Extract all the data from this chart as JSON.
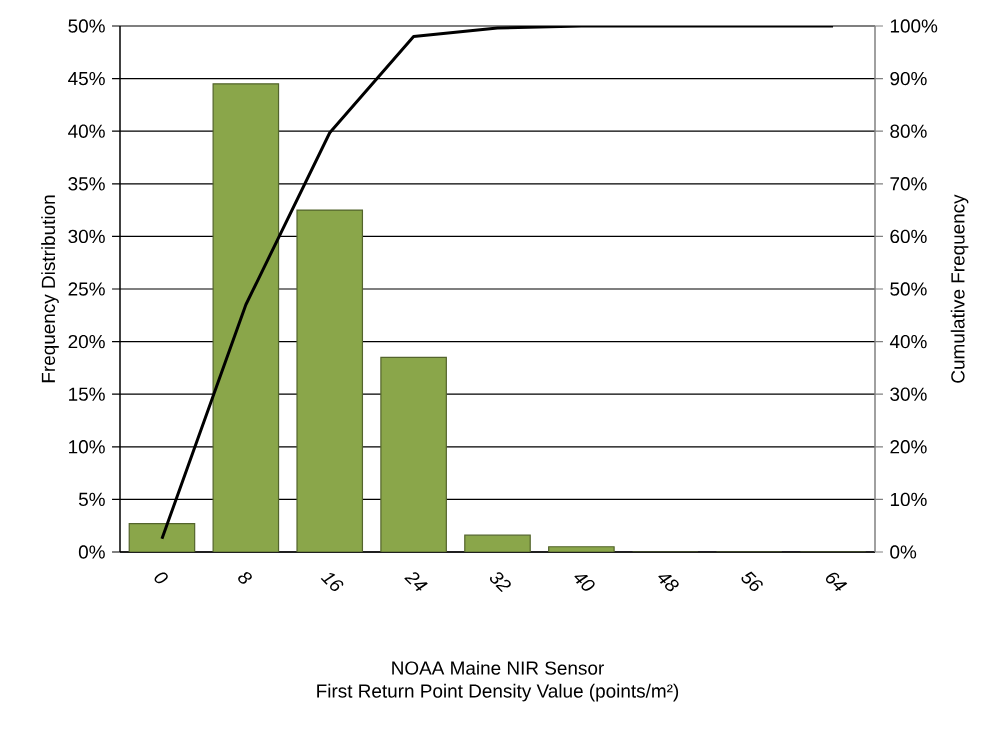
{
  "chart_data": {
    "type": "bar",
    "xlabel": "NOAA Maine NIR Sensor\nFirst Return Point Density Value (points/m²)",
    "ylabel": "Frequency Distribution",
    "y2label": "Cumulative Frequency",
    "categories": [
      "0",
      "8",
      "16",
      "24",
      "32",
      "40",
      "48",
      "56",
      "64"
    ],
    "series": [
      {
        "color": "#8aa64a",
        "values": [
          2.7,
          44.5,
          32.5,
          18.5,
          1.6,
          0.5,
          0,
          0,
          0
        ]
      },
      {
        "type": "line",
        "axis": "y2",
        "color": "#000000",
        "values": [
          2.5,
          47,
          79.7,
          98,
          99.6,
          100,
          100,
          100,
          100
        ]
      }
    ],
    "ylim": [
      0,
      50
    ],
    "yticks": [
      {
        "value": 0,
        "label": "0%"
      },
      {
        "value": 5,
        "label": "5%"
      },
      {
        "value": 10,
        "label": "10%"
      },
      {
        "value": 15,
        "label": "15%"
      },
      {
        "value": 20,
        "label": "20%"
      },
      {
        "value": 25,
        "label": "25%"
      },
      {
        "value": 30,
        "label": "30%"
      },
      {
        "value": 35,
        "label": "35%"
      },
      {
        "value": 40,
        "label": "40%"
      },
      {
        "value": 45,
        "label": "45%"
      },
      {
        "value": 50,
        "label": "50%"
      }
    ],
    "y2lim": [
      0,
      100
    ],
    "y2ticks": [
      {
        "value": 0,
        "label": "0%"
      },
      {
        "value": 10,
        "label": "10%"
      },
      {
        "value": 20,
        "label": "20%"
      },
      {
        "value": 30,
        "label": "30%"
      },
      {
        "value": 40,
        "label": "40%"
      },
      {
        "value": 50,
        "label": "50%"
      },
      {
        "value": 60,
        "label": "60%"
      },
      {
        "value": 70,
        "label": "70%"
      },
      {
        "value": 80,
        "label": "80%"
      },
      {
        "value": 90,
        "label": "90%"
      },
      {
        "value": 100,
        "label": "100%"
      }
    ],
    "grid": "y",
    "marker": "none",
    "line_style": "solid"
  }
}
